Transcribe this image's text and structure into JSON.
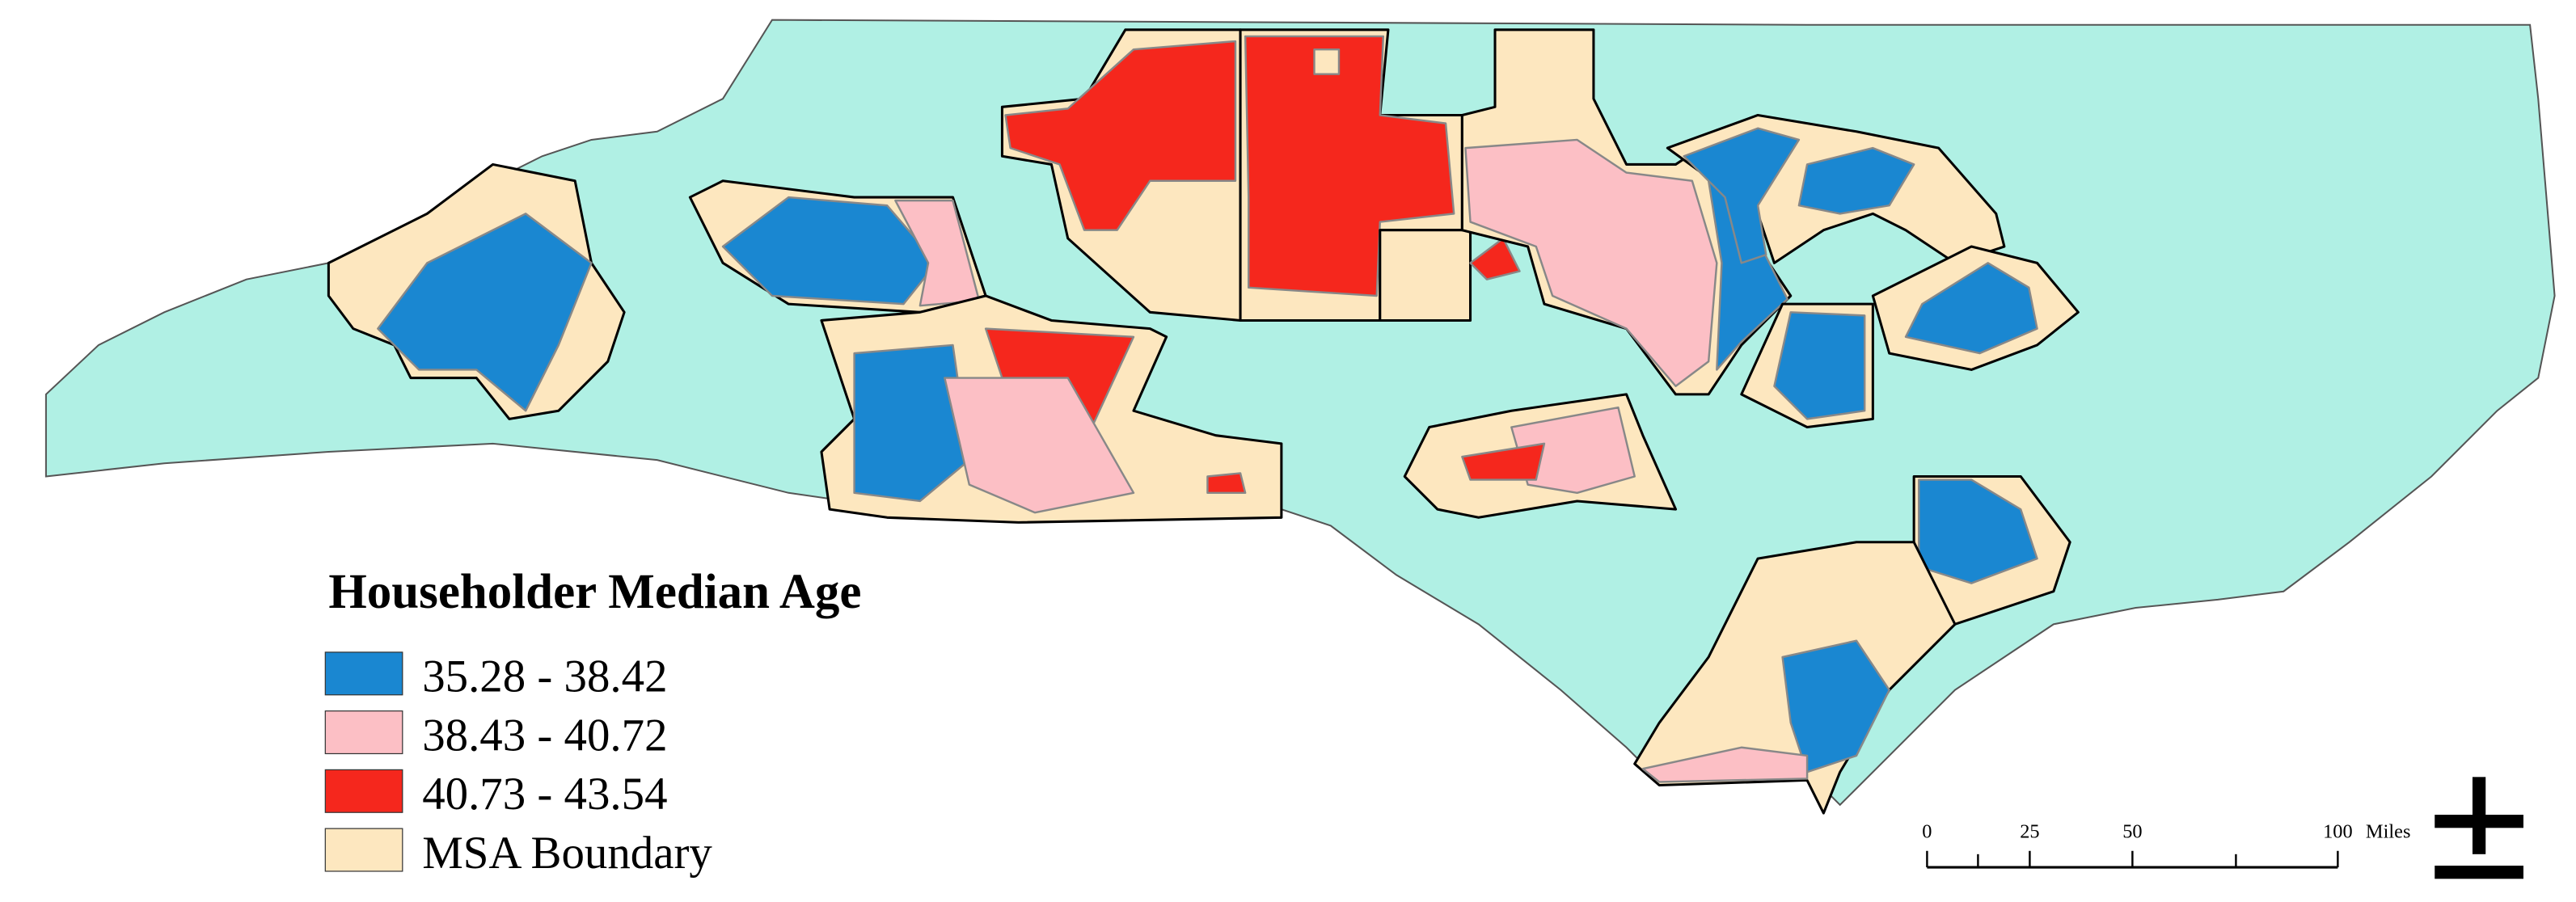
{
  "legend": {
    "title": "Householder Median Age",
    "items": [
      {
        "label": "35.28 - 38.42",
        "color": "#1a87d1"
      },
      {
        "label": "38.43 - 40.72",
        "color": "#fcbfc5"
      },
      {
        "label": "40.73 - 43.54",
        "color": "#f5271d"
      },
      {
        "label": "MSA Boundary",
        "color": "#fde7bf"
      }
    ]
  },
  "scale_bar": {
    "ticks": [
      0,
      25,
      50,
      100
    ],
    "unit": "Miles"
  }
}
